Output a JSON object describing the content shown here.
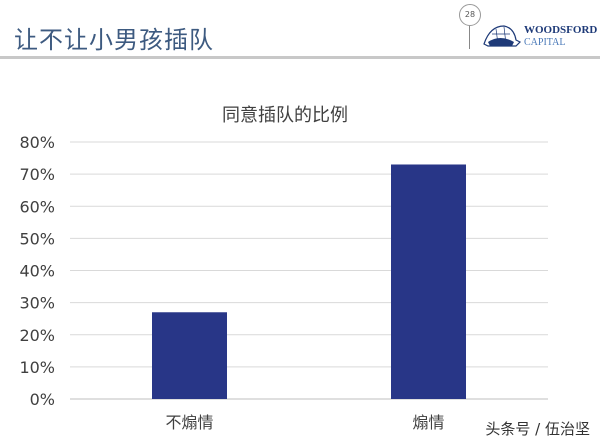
{
  "slide": {
    "title": "让不让小男孩插队",
    "page_number": "28",
    "logo_line1": "WOODSFORD",
    "logo_line2": "CAPITAL",
    "watermark": "头条号 / 伍治坚"
  },
  "colors": {
    "bar": "#283687",
    "title": "#3d5a80",
    "grid": "#d9d9d9"
  },
  "chart_data": {
    "type": "bar",
    "title": "同意插队的比例",
    "categories": [
      "不煽情",
      "煽情"
    ],
    "values": [
      0.27,
      0.73
    ],
    "ylim": [
      0,
      0.8
    ],
    "yticks": [
      "0%",
      "10%",
      "20%",
      "30%",
      "40%",
      "50%",
      "60%",
      "70%",
      "80%"
    ],
    "grid": true,
    "xlabel": "",
    "ylabel": ""
  }
}
